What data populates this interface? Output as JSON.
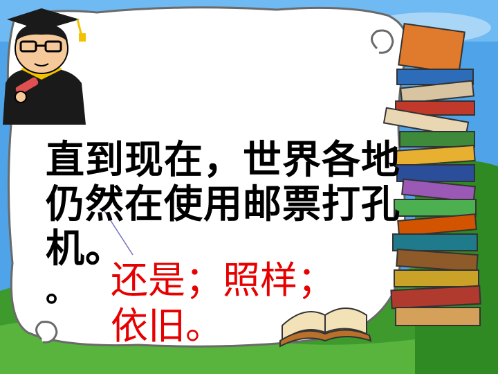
{
  "slide": {
    "main_text": {
      "line1": "直到现在，世界各地",
      "line2": "仍然在使用邮票打孔",
      "line3": "机。",
      "stray_mark": "。"
    },
    "annotation": {
      "line1": "还是；照样；",
      "line2": "依旧。"
    },
    "colors": {
      "sky": "#4fa3e8",
      "grass": "#3f9a2e",
      "paper": "#ffffff",
      "annotation_text": "#e60000",
      "body_text": "#000000"
    },
    "icons": [
      "graduate-character",
      "book-stack",
      "open-book",
      "swirl-decoration"
    ]
  }
}
